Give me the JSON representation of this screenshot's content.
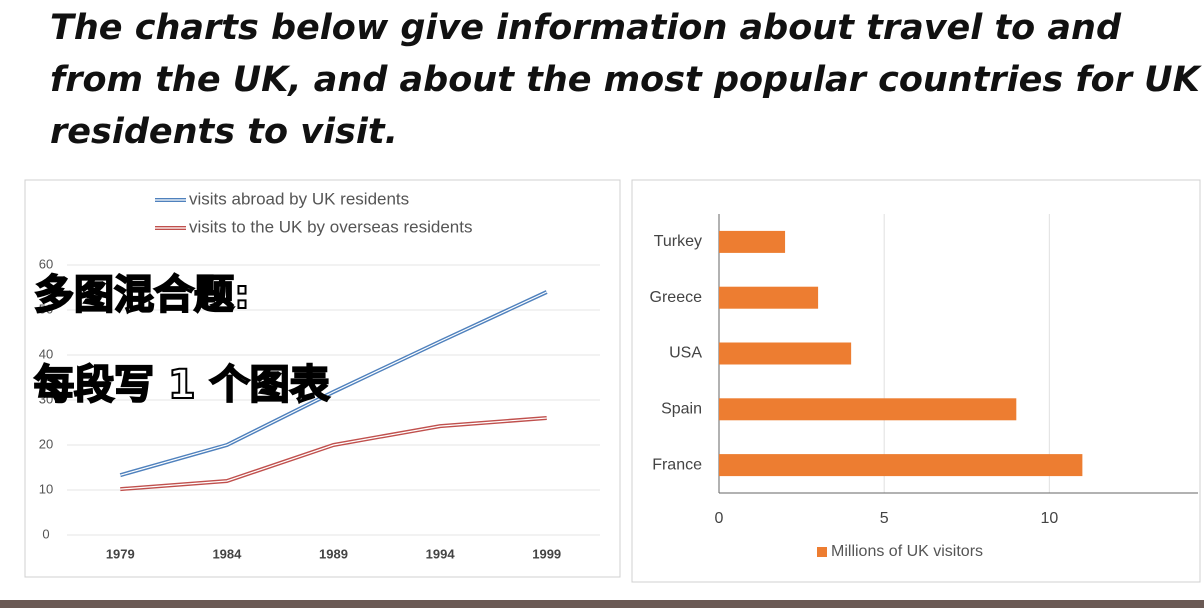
{
  "title": "The charts below give information about travel to and from the UK, and about the most popular countries for UK residents to visit.",
  "overlay": [
    "多图混合题:",
    "每段写 1 个图表"
  ],
  "chart_data": [
    {
      "type": "line",
      "categories": [
        "1979",
        "1984",
        "1989",
        "1994",
        "1999"
      ],
      "series": [
        {
          "name": "visits abroad by UK residents",
          "color": "#4f81bd",
          "values": [
            13.3,
            20,
            31.8,
            43,
            54
          ]
        },
        {
          "name": "visits to the UK by overseas residents",
          "color": "#c0504d",
          "values": [
            10.2,
            12,
            20,
            24.2,
            26
          ]
        }
      ],
      "ylim": [
        0,
        60
      ],
      "yticks": [
        0,
        10,
        20,
        30,
        40,
        50,
        60
      ],
      "grid": true,
      "legend": "top"
    },
    {
      "type": "hbar",
      "categories": [
        "Turkey",
        "Greece",
        "USA",
        "Spain",
        "France"
      ],
      "series": [
        {
          "name": "Millions of UK visitors",
          "color": "#ed7d31",
          "values": [
            2,
            3,
            4,
            9,
            11
          ]
        }
      ],
      "xlim": [
        0,
        14.5
      ],
      "xticks": [
        0,
        5,
        10
      ],
      "grid": true,
      "legend": "bottom"
    }
  ]
}
